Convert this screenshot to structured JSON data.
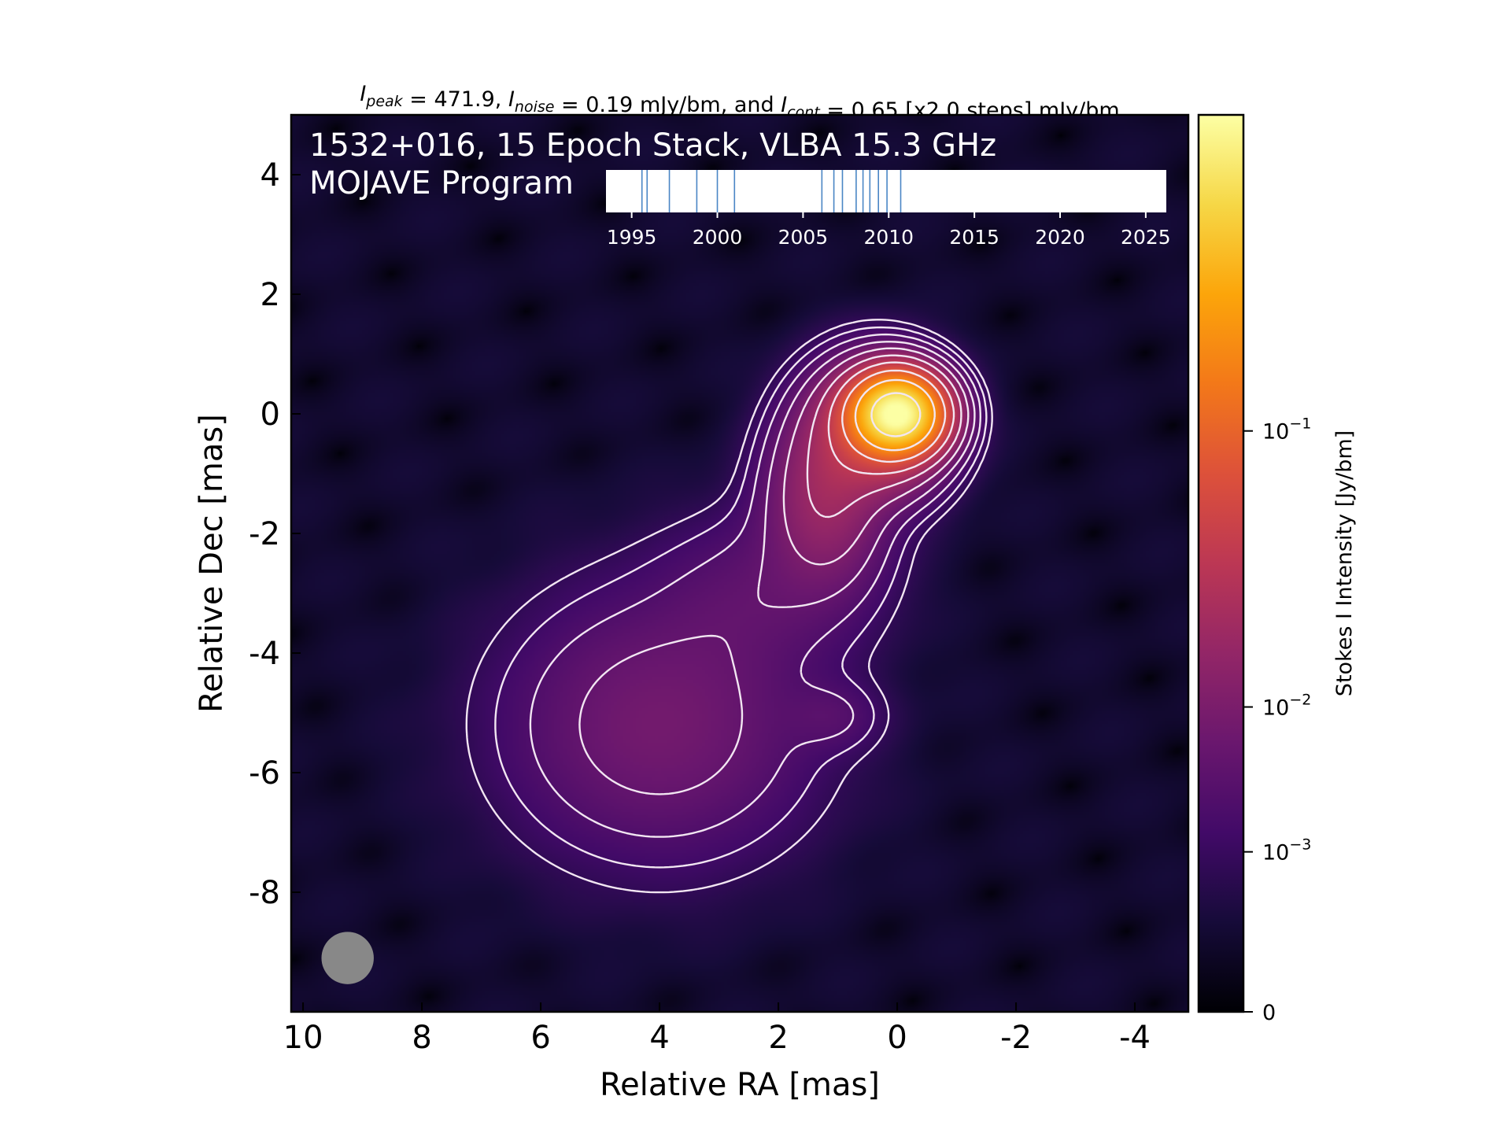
{
  "chart_data": {
    "type": "heatmap",
    "title": {
      "parts": [
        {
          "text": "I",
          "italic": true
        },
        {
          "text": "peak",
          "sub": true
        },
        {
          "text": " = 471.9, "
        },
        {
          "text": "I",
          "italic": true
        },
        {
          "text": "noise",
          "sub": true
        },
        {
          "text": " = 0.19 mJy/bm, and "
        },
        {
          "text": "I",
          "italic": true
        },
        {
          "text": "cont",
          "sub": true
        },
        {
          "text": " = 0.65 [x2.0 steps] mJy/bm"
        }
      ]
    },
    "annotation_line1": "1532+016, 15 Epoch Stack, VLBA 15.3 GHz",
    "annotation_line2": "MOJAVE Program",
    "xlabel": "Relative RA [mas]",
    "ylabel": "Relative Dec [mas]",
    "xlim": [
      10.2,
      -4.9
    ],
    "ylim": [
      -10.0,
      5.0
    ],
    "x_ticks": [
      10,
      8,
      6,
      4,
      2,
      0,
      -2,
      -4
    ],
    "x_tick_labels": [
      "10",
      "8",
      "6",
      "4",
      "2",
      "0",
      "-2",
      "-4"
    ],
    "y_ticks": [
      4,
      2,
      0,
      -2,
      -4,
      -6,
      -8
    ],
    "y_tick_labels": [
      "4",
      "2",
      "0",
      "-2",
      "-4",
      "-6",
      "-8"
    ],
    "peak_position": [
      0,
      0
    ],
    "colormap": "inferno",
    "beam": {
      "ra": 9.25,
      "dec": -9.1,
      "radius_mas": 0.44,
      "color": "#888888"
    },
    "contour_levels_mJy": [
      0.65,
      1.3,
      2.6,
      5.2,
      10.4,
      20.8,
      41.6,
      83.2,
      166.4,
      332.8
    ],
    "components": [
      {
        "ra": 0.0,
        "dec": 0.0,
        "peak_Jy": 0.47,
        "sigma_ra": 0.42,
        "sigma_dec": 0.37
      },
      {
        "ra": 0.35,
        "dec": -0.25,
        "peak_Jy": 0.06,
        "sigma_ra": 0.6,
        "sigma_dec": 0.6
      },
      {
        "ra": 1.2,
        "dec": -1.3,
        "peak_Jy": 0.02,
        "sigma_ra": 0.55,
        "sigma_dec": 0.8
      },
      {
        "ra": 4.0,
        "dec": -5.2,
        "peak_Jy": 0.008,
        "sigma_ra": 1.45,
        "sigma_dec": 1.25
      },
      {
        "ra": 2.5,
        "dec": -3.1,
        "peak_Jy": 0.003,
        "sigma_ra": 1.0,
        "sigma_dec": 0.8
      },
      {
        "ra": 1.4,
        "dec": -2.4,
        "peak_Jy": 0.003,
        "sigma_ra": 0.8,
        "sigma_dec": 0.8
      },
      {
        "ra": 1.1,
        "dec": -5.05,
        "peak_Jy": 0.0025,
        "sigma_ra": 0.5,
        "sigma_dec": 0.35
      }
    ],
    "epoch_timeline": {
      "xlim": [
        1993.5,
        2026.2
      ],
      "ticks": [
        1995,
        2000,
        2005,
        2010,
        2015,
        2020,
        2025
      ],
      "tick_labels": [
        "1995",
        "2000",
        "2005",
        "2010",
        "2015",
        "2020",
        "2025"
      ],
      "epochs": [
        1995.6,
        1995.9,
        1997.2,
        1998.8,
        2000.0,
        2001.0,
        2006.1,
        2006.8,
        2007.3,
        2008.1,
        2008.5,
        2008.9,
        2009.4,
        2009.9,
        2010.7
      ],
      "line_color": "#4a86c5"
    },
    "colorbar": {
      "label": "Stokes I Intensity [Jy/bm]",
      "tick_values": [
        0.1,
        0.01,
        0.001,
        0
      ],
      "tick_labels": [
        {
          "base": "10",
          "exp": "−1"
        },
        {
          "base": "10",
          "exp": "−2"
        },
        {
          "base": "10",
          "exp": "−3"
        },
        {
          "base": "0",
          "exp": ""
        }
      ],
      "vmax": 0.4719
    }
  }
}
